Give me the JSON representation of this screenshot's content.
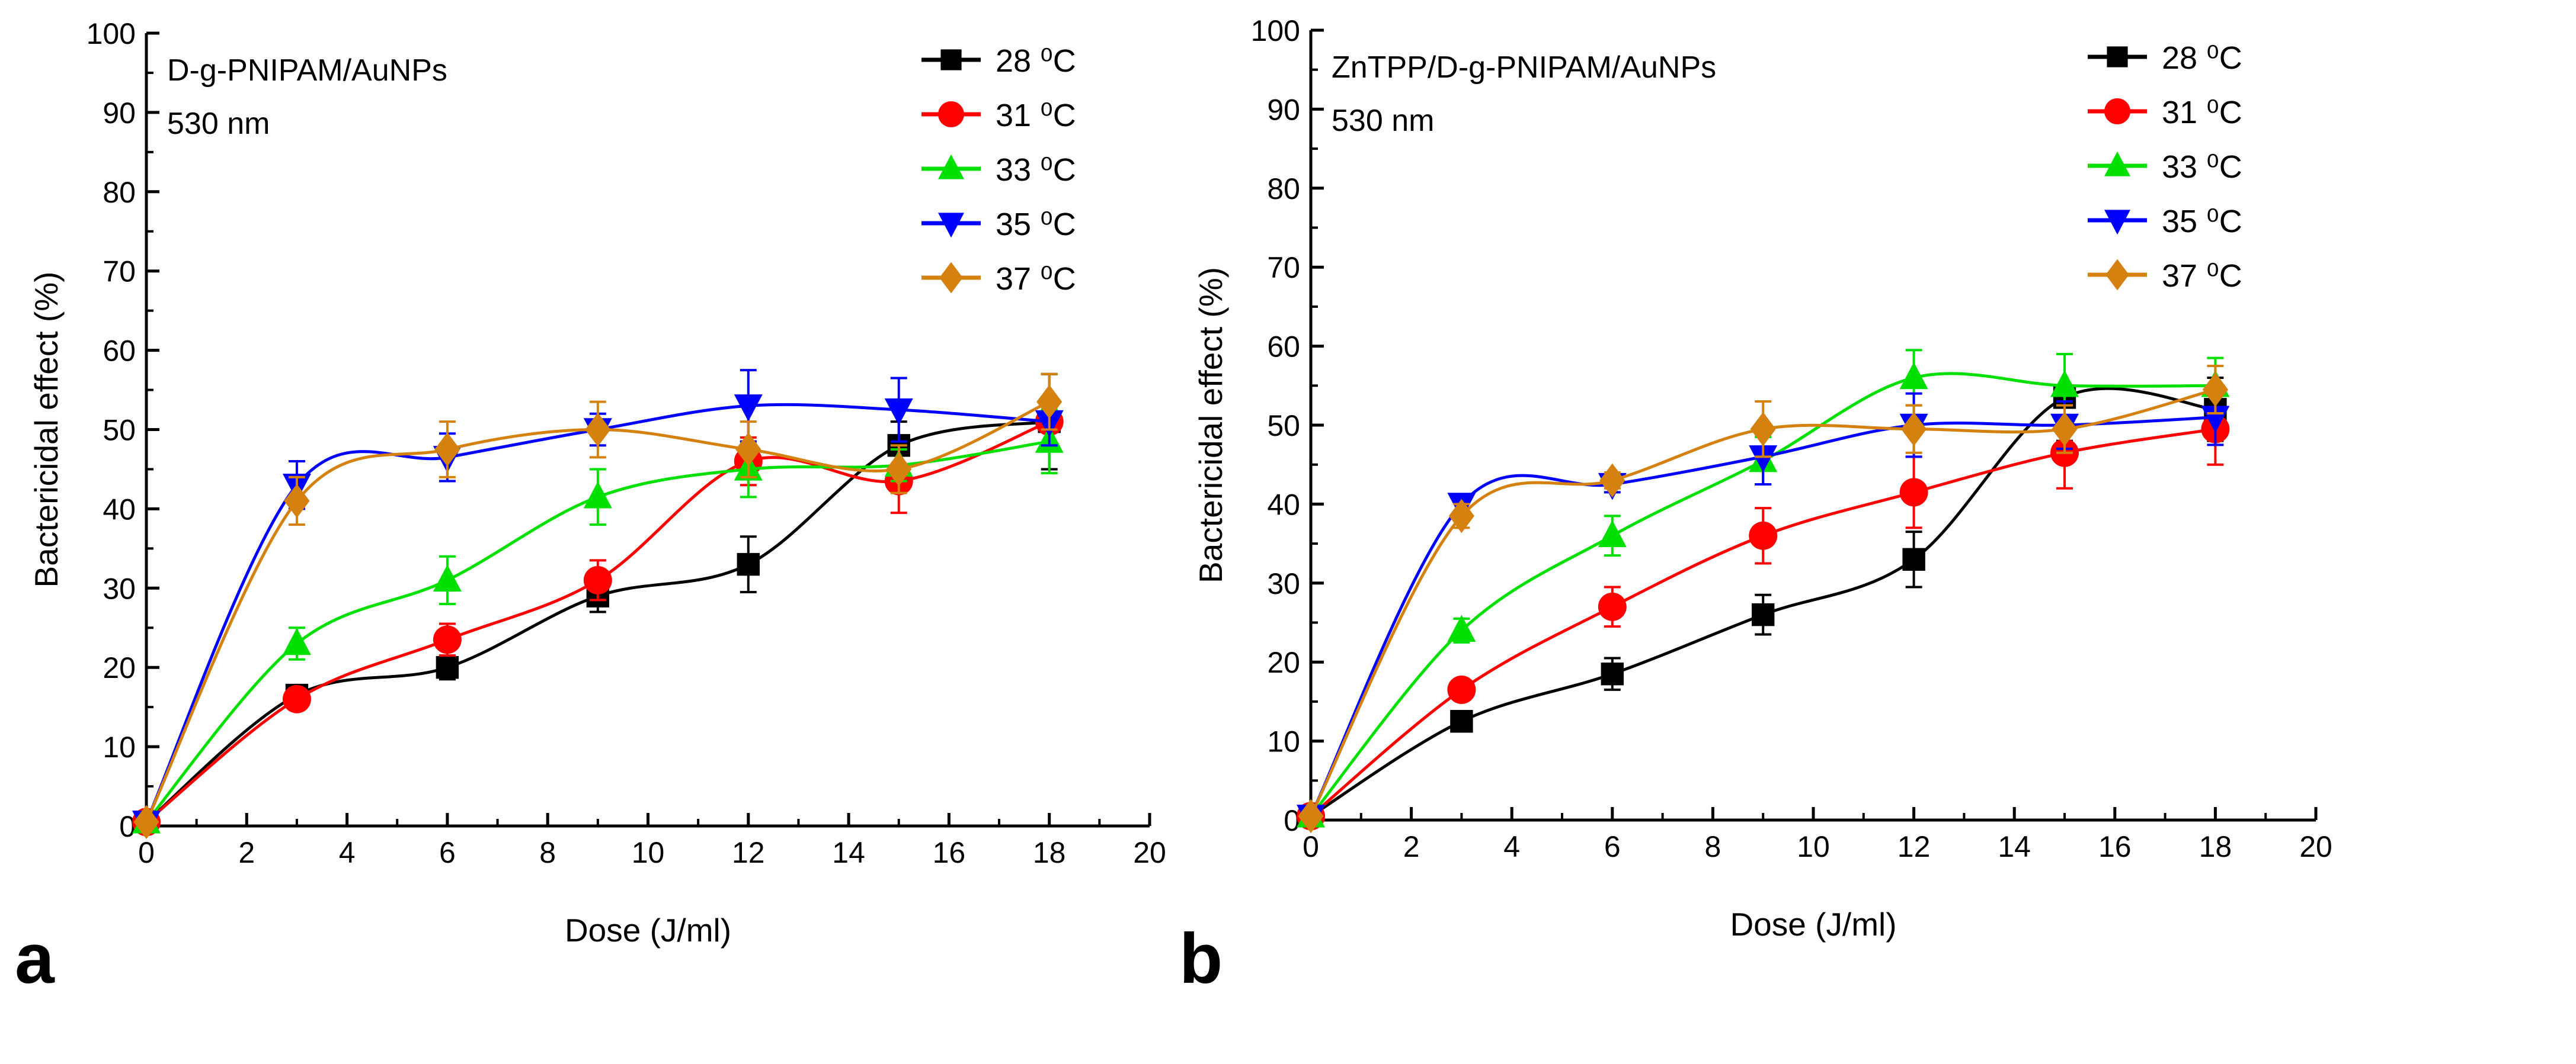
{
  "chart_data": [
    {
      "panel_letter": "a",
      "type": "line",
      "annotation": [
        "D-g-PNIPAM/AuNPs",
        "530 nm"
      ],
      "xlabel": "Dose (J/ml)",
      "ylabel": "Bactericidal effect (%)",
      "xlim": [
        0,
        20
      ],
      "ylim": [
        0,
        100
      ],
      "xticks": [
        "0",
        "2",
        "4",
        "6",
        "8",
        "10",
        "12",
        "14",
        "16",
        "18",
        "20"
      ],
      "yticks": [
        "0",
        "10",
        "20",
        "30",
        "40",
        "50",
        "60",
        "70",
        "80",
        "90",
        "100"
      ],
      "legend_position": "top-right",
      "grid": false,
      "x": [
        0,
        3,
        6,
        9,
        12,
        15,
        18
      ],
      "series": [
        {
          "name": "28 ⁰C",
          "color": "#000000",
          "marker": "square",
          "values": [
            0.5,
            16.5,
            20,
            29,
            33,
            48,
            51
          ],
          "err": [
            0,
            1,
            1.5,
            2,
            3.5,
            3,
            6
          ]
        },
        {
          "name": "31 ⁰C",
          "color": "#ff0000",
          "marker": "circle",
          "values": [
            0.5,
            16,
            23.5,
            31,
            46,
            43.5,
            51
          ],
          "err": [
            0,
            1,
            2,
            2.5,
            3,
            4,
            3
          ]
        },
        {
          "name": "33 ⁰C",
          "color": "#00e000",
          "marker": "triangle-up",
          "values": [
            0.5,
            23,
            31,
            41.5,
            45,
            45.5,
            48.5
          ],
          "err": [
            0,
            2,
            3,
            3.5,
            3.5,
            2,
            4
          ]
        },
        {
          "name": "35 ⁰C",
          "color": "#0000ff",
          "marker": "triangle-down",
          "values": [
            0.5,
            43,
            46.5,
            50,
            53,
            52.5,
            51
          ],
          "err": [
            0,
            3,
            3,
            2,
            4.5,
            4,
            3
          ]
        },
        {
          "name": "37 ⁰C",
          "color": "#d4810f",
          "marker": "diamond",
          "values": [
            0.5,
            41,
            47.5,
            50,
            47.5,
            45,
            53.5
          ],
          "err": [
            0,
            3,
            3.5,
            3.5,
            3.5,
            3,
            3.5
          ]
        }
      ]
    },
    {
      "panel_letter": "b",
      "type": "line",
      "annotation": [
        "ZnTPP/D-g-PNIPAM/AuNPs",
        "530 nm"
      ],
      "xlabel": "Dose (J/ml)",
      "ylabel": "Bactericidal effect (%)",
      "xlim": [
        0,
        20
      ],
      "ylim": [
        0,
        100
      ],
      "xticks": [
        "0",
        "2",
        "4",
        "6",
        "8",
        "10",
        "12",
        "14",
        "16",
        "18",
        "20"
      ],
      "yticks": [
        "0",
        "10",
        "20",
        "30",
        "40",
        "50",
        "60",
        "70",
        "80",
        "90",
        "100"
      ],
      "legend_position": "top-right",
      "grid": false,
      "x": [
        0,
        3,
        6,
        9,
        12,
        15,
        18
      ],
      "series": [
        {
          "name": "28 ⁰C",
          "color": "#000000",
          "marker": "square",
          "values": [
            0.5,
            12.5,
            18.5,
            26,
            33,
            53.5,
            52
          ],
          "err": [
            0,
            0.5,
            2,
            2.5,
            3.5,
            5.5,
            4
          ]
        },
        {
          "name": "31 ⁰C",
          "color": "#ff0000",
          "marker": "circle",
          "values": [
            0.5,
            16.5,
            27,
            36,
            41.5,
            46.5,
            49.5
          ],
          "err": [
            0,
            1,
            2.5,
            3.5,
            4.5,
            4.5,
            4.5
          ]
        },
        {
          "name": "33 ⁰C",
          "color": "#00e000",
          "marker": "triangle-up",
          "values": [
            0.5,
            24,
            36,
            45.5,
            56,
            55,
            55
          ],
          "err": [
            0,
            1.5,
            2.5,
            3,
            3.5,
            4,
            3.5
          ]
        },
        {
          "name": "35 ⁰C",
          "color": "#0000ff",
          "marker": "triangle-down",
          "values": [
            0.5,
            40,
            42.5,
            46,
            50,
            50,
            51
          ],
          "err": [
            0,
            1,
            1,
            3.5,
            4,
            3,
            3.5
          ]
        },
        {
          "name": "37 ⁰C",
          "color": "#d4810f",
          "marker": "diamond",
          "values": [
            0.5,
            38.5,
            43,
            49.5,
            49.5,
            49.5,
            54.5
          ],
          "err": [
            0,
            1.5,
            1,
            3.5,
            3,
            3,
            3
          ]
        }
      ]
    }
  ]
}
